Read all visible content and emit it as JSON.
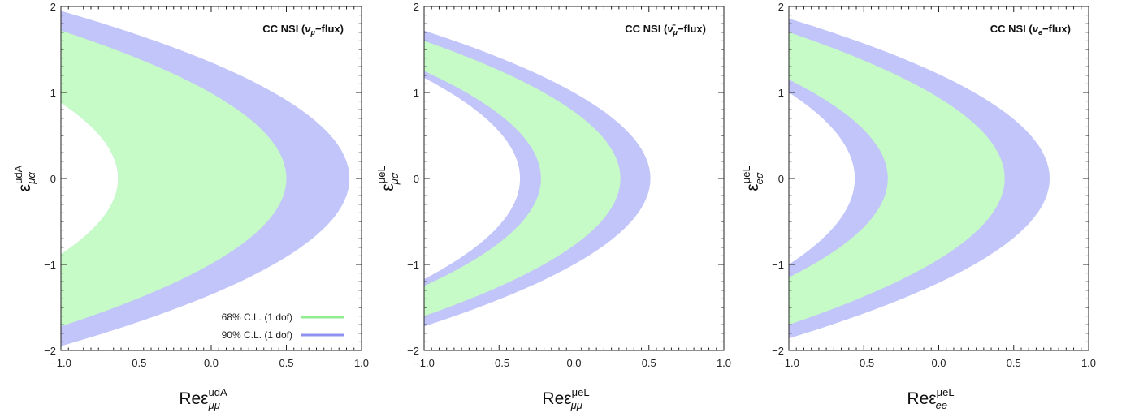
{
  "chart_data": [
    {
      "type": "area",
      "title": "CC NSI (ν_μ−flux)",
      "title_parts": [
        "CC NSI (",
        "ν",
        "μ",
        "−flux)"
      ],
      "xlabel": "Reε^udA_μμ",
      "ylabel": "ε^udA_μα",
      "xlabel_parts": {
        "main": "Reε",
        "sup": "udA",
        "sub": "μμ"
      },
      "ylabel_parts": {
        "main": "ε",
        "sup": "udA",
        "sub": "μα"
      },
      "xlim": [
        -1.0,
        1.0
      ],
      "ylim": [
        -2,
        2
      ],
      "xticks": [
        "−1.0",
        "−0.5",
        "0.0",
        "0.5",
        "1.0"
      ],
      "yticks": [
        "−2",
        "−1",
        "0",
        "1",
        "2"
      ],
      "regions": [
        {
          "name": "90% C.L. (1 dof)",
          "color": "#c2c5f9",
          "outer_vertex_x": 0.92,
          "outer_y_at_xmin": 1.95,
          "inner_vertex_x": -0.62,
          "inner_y_at_xmin": 0.88
        },
        {
          "name": "68% C.L. (1 dof)",
          "color": "#c6fac6",
          "outer_vertex_x": 0.5,
          "outer_y_at_xmin": 1.72,
          "inner_vertex_x": -0.62,
          "inner_y_at_xmin": 0.88
        }
      ],
      "legend": {
        "placement": "bottom-right",
        "entries": [
          {
            "label": "68% C.L. (1 dof)",
            "color": "#90ee90"
          },
          {
            "label": "90% C.L. (1 dof)",
            "color": "#8f92f0"
          }
        ]
      }
    },
    {
      "type": "area",
      "title": "CC NSI (ν̄_μ−flux)",
      "title_parts": [
        "CC NSI (",
        "ν̄",
        "μ",
        "−flux)"
      ],
      "xlabel": "Reε^μeL_μμ",
      "ylabel": "ε^μeL_μα",
      "xlabel_parts": {
        "main": "Reε",
        "sup": "μeL",
        "sub": "μμ"
      },
      "ylabel_parts": {
        "main": "ε",
        "sup": "μeL",
        "sub": "μα"
      },
      "xlim": [
        -1.0,
        1.0
      ],
      "ylim": [
        -2,
        2
      ],
      "xticks": [
        "−1.0",
        "−0.5",
        "0.0",
        "0.5",
        "1.0"
      ],
      "yticks": [
        "−2",
        "−1",
        "0",
        "1",
        "2"
      ],
      "regions": [
        {
          "name": "90% C.L. (1 dof)",
          "color": "#c2c5f9",
          "outer_vertex_x": 0.51,
          "outer_y_at_xmin": 1.72,
          "inner_vertex_x": -0.36,
          "inner_y_at_xmin": 1.17
        },
        {
          "name": "68% C.L. (1 dof)",
          "color": "#c6fac6",
          "outer_vertex_x": 0.31,
          "outer_y_at_xmin": 1.6,
          "inner_vertex_x": -0.22,
          "inner_y_at_xmin": 1.25
        }
      ]
    },
    {
      "type": "area",
      "title": "CC NSI (ν_e−flux)",
      "title_parts": [
        "CC NSI (",
        "ν",
        "e",
        "−flux)"
      ],
      "xlabel": "Reε^μeL_ee",
      "ylabel": "ε^μeL_eα",
      "xlabel_parts": {
        "main": "Reε",
        "sup": "μeL",
        "sub": "ee"
      },
      "ylabel_parts": {
        "main": "ε",
        "sup": "μeL",
        "sub": "eα"
      },
      "xlim": [
        -1.0,
        1.0
      ],
      "ylim": [
        -2,
        2
      ],
      "xticks": [
        "−1.0",
        "−0.5",
        "0.0",
        "0.5",
        "1.0"
      ],
      "yticks": [
        "−2",
        "−1",
        "0",
        "1",
        "2"
      ],
      "regions": [
        {
          "name": "90% C.L. (1 dof)",
          "color": "#c2c5f9",
          "outer_vertex_x": 0.74,
          "outer_y_at_xmin": 1.86,
          "inner_vertex_x": -0.56,
          "inner_y_at_xmin": 1.0
        },
        {
          "name": "68% C.L. (1 dof)",
          "color": "#c6fac6",
          "outer_vertex_x": 0.44,
          "outer_y_at_xmin": 1.7,
          "inner_vertex_x": -0.34,
          "inner_y_at_xmin": 1.15
        }
      ]
    }
  ]
}
